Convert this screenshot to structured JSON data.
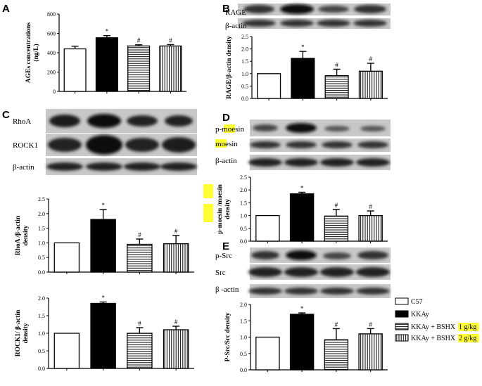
{
  "panels": {
    "A": {
      "label": "A"
    },
    "B": {
      "label": "B"
    },
    "C": {
      "label": "C"
    },
    "D": {
      "label": "D"
    },
    "E": {
      "label": "E"
    }
  },
  "blots": {
    "B": [
      "RAGE",
      "β-actin"
    ],
    "C": [
      "RhoA",
      "ROCK1",
      "β-actin"
    ],
    "D": [
      "p-moesin",
      "moesin",
      "β-actin"
    ],
    "E": [
      "p-Src",
      "Src",
      "β -actin"
    ]
  },
  "legend": {
    "items": [
      {
        "label": "C57",
        "highlight": ""
      },
      {
        "label": "KKAy",
        "highlight": ""
      },
      {
        "label": "KKAy + BSHX ",
        "highlight": "1 g/kg"
      },
      {
        "label": "KKAy + BSHX ",
        "highlight": "2 g/kg"
      }
    ],
    "colors": {
      "fill_black": "#000000",
      "highlight": "#ffff33"
    }
  },
  "chart_data": [
    {
      "id": "A",
      "type": "bar",
      "ylabel": "AGEs concentrations\n(ng/L)",
      "categories": [
        "C57",
        "KKAy",
        "KKAy + BSHX 1 g/kg",
        "KKAy + BSHX 2 g/kg"
      ],
      "values": [
        440,
        555,
        470,
        470
      ],
      "errors": [
        28,
        22,
        12,
        14
      ],
      "ylim": [
        0,
        800
      ],
      "yticks": [
        "0",
        "200",
        "400",
        "600",
        "800"
      ],
      "markers": [
        "",
        "*",
        "#",
        "#"
      ]
    },
    {
      "id": "B",
      "type": "bar",
      "ylabel": "RAGE/β-actin density",
      "categories": [
        "C57",
        "KKAy",
        "KKAy + BSHX 1 g/kg",
        "KKAy + BSHX 2 g/kg"
      ],
      "values": [
        1.0,
        1.62,
        0.92,
        1.1
      ],
      "errors": [
        0,
        0.28,
        0.26,
        0.32
      ],
      "ylim": [
        0,
        2.5
      ],
      "yticks": [
        "0.0",
        "0.5",
        "1.0",
        "1.5",
        "2.0",
        "2.5"
      ],
      "markers": [
        "",
        "*",
        "#",
        "#"
      ]
    },
    {
      "id": "C1",
      "type": "bar",
      "ylabel": "RhoA /β-actin\ndensity",
      "categories": [
        "C57",
        "KKAy",
        "KKAy + BSHX 1 g/kg",
        "KKAy + BSHX 2 g/kg"
      ],
      "values": [
        1.0,
        1.8,
        0.95,
        0.97
      ],
      "errors": [
        0,
        0.34,
        0.18,
        0.28
      ],
      "ylim": [
        0,
        2.5
      ],
      "yticks": [
        "0.0",
        "0.5",
        "1.0",
        "1.5",
        "2.0",
        "2.5"
      ],
      "markers": [
        "",
        "*",
        "#",
        "#"
      ]
    },
    {
      "id": "C2",
      "type": "bar",
      "ylabel": "ROCK1/ β-actin\ndensity",
      "categories": [
        "C57",
        "KKAy",
        "KKAy + BSHX 1 g/kg",
        "KKAy + BSHX 2 g/kg"
      ],
      "values": [
        1.0,
        1.85,
        1.0,
        1.1
      ],
      "errors": [
        0,
        0.04,
        0.16,
        0.1
      ],
      "ylim": [
        0,
        2.0
      ],
      "yticks": [
        "0.0",
        "0.5",
        "1.0",
        "1.5",
        "2.0"
      ],
      "markers": [
        "",
        "*",
        "#",
        "#"
      ]
    },
    {
      "id": "D",
      "type": "bar",
      "ylabel": "p-moesin /moesin\ndensity",
      "categories": [
        "C57",
        "KKAy",
        "KKAy + BSHX 1 g/kg",
        "KKAy + BSHX 2 g/kg"
      ],
      "values": [
        1.0,
        1.85,
        0.98,
        1.0
      ],
      "errors": [
        0,
        0.06,
        0.26,
        0.18
      ],
      "ylim": [
        0,
        2.5
      ],
      "yticks": [
        "0.0",
        "0.5",
        "1.0",
        "1.5",
        "2.0",
        "2.5"
      ],
      "markers": [
        "",
        "*",
        "#",
        "#"
      ]
    },
    {
      "id": "E",
      "type": "bar",
      "ylabel": "P-Src/Src density",
      "categories": [
        "C57",
        "KKAy",
        "KKAy + BSHX 1 g/kg",
        "KKAy + BSHX 2 g/kg"
      ],
      "values": [
        1.0,
        1.7,
        0.92,
        1.1
      ],
      "errors": [
        0,
        0.04,
        0.34,
        0.16
      ],
      "ylim": [
        0,
        2.0
      ],
      "yticks": [
        "0.0",
        "0.5",
        "1.0",
        "1.5",
        "2.0"
      ],
      "markers": [
        "",
        "*",
        "#",
        "#"
      ]
    }
  ]
}
